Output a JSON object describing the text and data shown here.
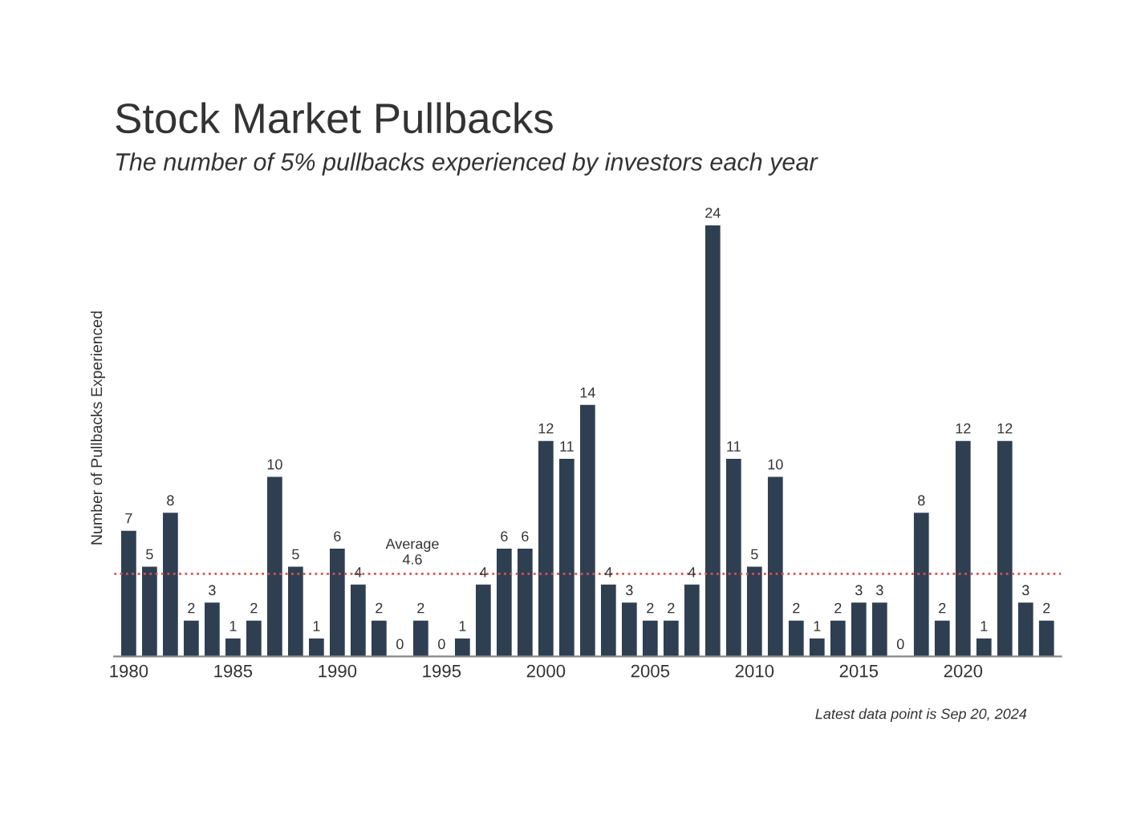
{
  "chart_data": {
    "type": "bar",
    "title": "Stock Market Pullbacks",
    "subtitle": "The number of 5% pullbacks experienced by investors each year",
    "ylabel": "Number of Pullbacks Experienced",
    "x": [
      1980,
      1981,
      1982,
      1983,
      1984,
      1985,
      1986,
      1987,
      1988,
      1989,
      1990,
      1991,
      1992,
      1993,
      1994,
      1995,
      1996,
      1997,
      1998,
      1999,
      2000,
      2001,
      2002,
      2003,
      2004,
      2005,
      2006,
      2007,
      2008,
      2009,
      2010,
      2011,
      2012,
      2013,
      2014,
      2015,
      2016,
      2017,
      2018,
      2019,
      2020,
      2021,
      2022,
      2023,
      2024
    ],
    "values": [
      7,
      5,
      8,
      2,
      3,
      1,
      2,
      10,
      5,
      1,
      6,
      4,
      2,
      0,
      2,
      0,
      1,
      4,
      6,
      6,
      12,
      11,
      14,
      4,
      3,
      2,
      2,
      4,
      24,
      11,
      5,
      10,
      2,
      1,
      2,
      3,
      3,
      0,
      8,
      2,
      12,
      1,
      12,
      3,
      2
    ],
    "color": "#2f3f52",
    "xlim": [
      1979.3,
      2024.7
    ],
    "xticks": [
      1980,
      1985,
      1990,
      1995,
      2000,
      2005,
      2010,
      2015,
      2020
    ],
    "data_labels": true,
    "tick_labels": "x",
    "grid": false,
    "ref_lines": [
      {
        "axis": "y",
        "value": 4.6,
        "label": "Average\n4.6",
        "color": "#d9534f",
        "line_style": "dotted"
      }
    ],
    "annotations": [
      "Latest data point is Sep 20, 2024"
    ]
  }
}
